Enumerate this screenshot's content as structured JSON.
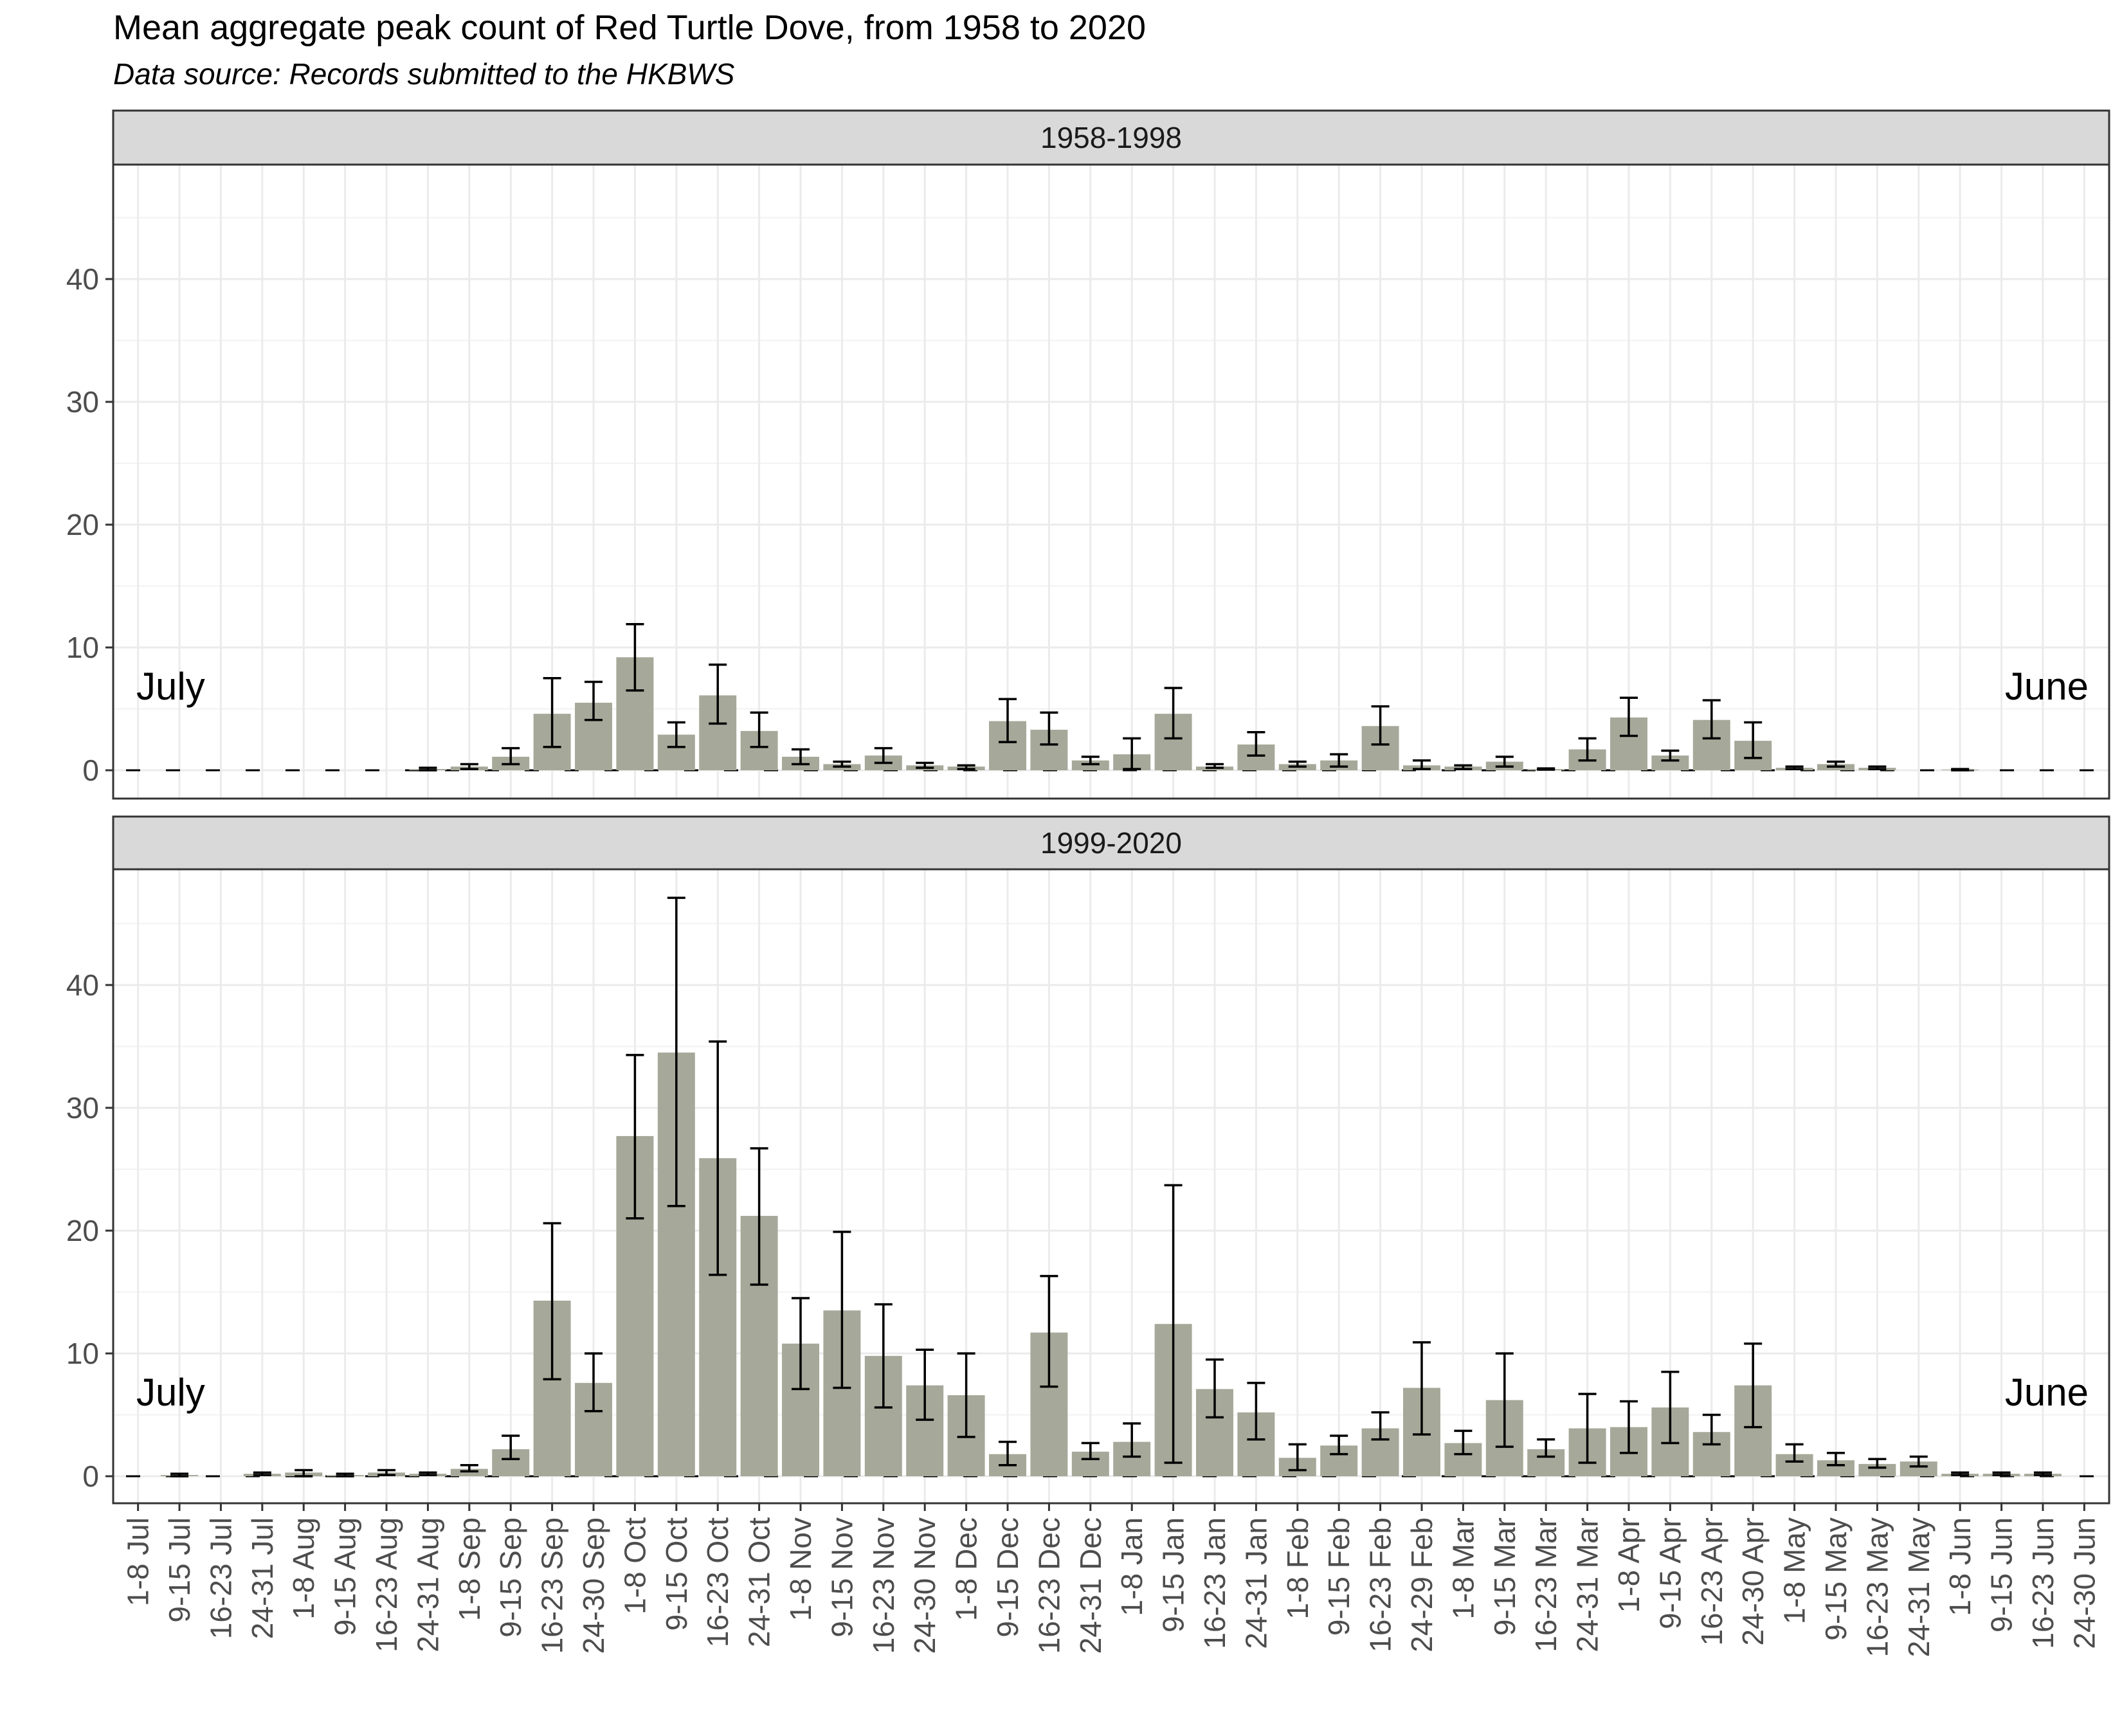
{
  "chart_data": {
    "type": "bar",
    "title": "Mean aggregate peak count of Red Turtle Dove, from 1958 to 2020",
    "subtitle": "Data source: Records submitted to the HKBWS",
    "xlabel": "",
    "ylabel": "",
    "ylim": [
      0,
      49
    ],
    "yticks": [
      0,
      10,
      20,
      30,
      40
    ],
    "grid": true,
    "bar_color": "#a6a899",
    "categories": [
      "1-8 Jul",
      "9-15 Jul",
      "16-23 Jul",
      "24-31 Jul",
      "1-8 Aug",
      "9-15 Aug",
      "16-23 Aug",
      "24-31 Aug",
      "1-8 Sep",
      "9-15 Sep",
      "16-23 Sep",
      "24-30 Sep",
      "1-8 Oct",
      "9-15 Oct",
      "16-23 Oct",
      "24-31 Oct",
      "1-8 Nov",
      "9-15 Nov",
      "16-23 Nov",
      "24-30 Nov",
      "1-8 Dec",
      "9-15 Dec",
      "16-23 Dec",
      "24-31 Dec",
      "1-8 Jan",
      "9-15 Jan",
      "16-23 Jan",
      "24-31 Jan",
      "1-8 Feb",
      "9-15 Feb",
      "16-23 Feb",
      "24-29 Feb",
      "1-8 Mar",
      "9-15 Mar",
      "16-23 Mar",
      "24-31 Mar",
      "1-8 Apr",
      "9-15 Apr",
      "16-23 Apr",
      "24-30 Apr",
      "1-8 May",
      "9-15 May",
      "16-23 May",
      "24-31 May",
      "1-8 Jun",
      "9-15 Jun",
      "16-23 Jun",
      "24-30 Jun"
    ],
    "panels": [
      {
        "label": "1958-1998",
        "start_label": "July",
        "end_label": "June",
        "values": [
          0,
          0,
          0,
          0,
          0,
          0,
          0,
          0.1,
          0.3,
          1.1,
          4.6,
          5.5,
          9.2,
          2.9,
          6.1,
          3.2,
          1.1,
          0.5,
          1.2,
          0.4,
          0.3,
          4.0,
          3.3,
          0.8,
          1.3,
          4.6,
          0.3,
          2.1,
          0.5,
          0.8,
          3.6,
          0.4,
          0.3,
          0.7,
          0.1,
          1.7,
          4.3,
          1.2,
          4.1,
          2.4,
          0.2,
          0.5,
          0.2,
          0,
          0.05,
          0,
          0,
          0
        ],
        "err_low": [
          0,
          0,
          0,
          0,
          0,
          0,
          0,
          0,
          0.1,
          0.5,
          1.9,
          4.1,
          6.5,
          1.9,
          3.8,
          1.9,
          0.5,
          0.3,
          0.6,
          0.2,
          0.1,
          2.3,
          2.1,
          0.5,
          0.1,
          2.6,
          0.2,
          1.2,
          0.3,
          0.3,
          2.1,
          0.1,
          0.1,
          0.3,
          0.05,
          0.8,
          2.8,
          0.8,
          2.6,
          1.0,
          0.1,
          0.3,
          0.1,
          0,
          0,
          0,
          0,
          0
        ],
        "err_high": [
          0,
          0,
          0,
          0,
          0,
          0,
          0,
          0.2,
          0.5,
          1.8,
          7.5,
          7.2,
          11.9,
          3.9,
          8.6,
          4.7,
          1.7,
          0.7,
          1.8,
          0.6,
          0.4,
          5.8,
          4.7,
          1.1,
          2.6,
          6.7,
          0.5,
          3.1,
          0.7,
          1.3,
          5.2,
          0.8,
          0.4,
          1.1,
          0.15,
          2.6,
          5.9,
          1.6,
          5.7,
          3.9,
          0.3,
          0.7,
          0.3,
          0,
          0.1,
          0,
          0,
          0
        ]
      },
      {
        "label": "1999-2020",
        "start_label": "July",
        "end_label": "June",
        "values": [
          0,
          0.1,
          0,
          0.2,
          0.3,
          0.1,
          0.3,
          0.2,
          0.6,
          2.2,
          14.3,
          7.6,
          27.7,
          34.5,
          25.9,
          21.2,
          10.8,
          13.5,
          9.8,
          7.4,
          6.6,
          1.8,
          11.7,
          2.0,
          2.8,
          12.4,
          7.1,
          5.2,
          1.5,
          2.5,
          3.9,
          7.2,
          2.7,
          6.2,
          2.2,
          3.9,
          4.0,
          5.6,
          3.6,
          7.4,
          1.8,
          1.3,
          1.0,
          1.2,
          0.2,
          0.2,
          0.2,
          0
        ],
        "err_low": [
          0,
          0,
          0,
          0.1,
          0,
          0,
          0.1,
          0.1,
          0.4,
          1.4,
          7.9,
          5.3,
          21.0,
          22.0,
          16.4,
          15.6,
          7.1,
          7.2,
          5.6,
          4.6,
          3.2,
          0.9,
          7.3,
          1.4,
          1.6,
          1.1,
          4.8,
          3.0,
          0.5,
          1.8,
          3.0,
          3.4,
          1.8,
          2.4,
          1.6,
          1.1,
          1.9,
          2.7,
          2.6,
          4.0,
          1.2,
          0.9,
          0.7,
          0.8,
          0.1,
          0.1,
          0.1,
          0
        ],
        "err_high": [
          0,
          0.2,
          0,
          0.3,
          0.5,
          0.2,
          0.5,
          0.3,
          0.9,
          3.3,
          20.6,
          10.0,
          34.3,
          47.1,
          35.4,
          26.7,
          14.5,
          19.9,
          14.0,
          10.3,
          10.0,
          2.8,
          16.3,
          2.7,
          4.3,
          23.7,
          9.5,
          7.6,
          2.6,
          3.3,
          5.2,
          10.9,
          3.7,
          10.0,
          3.0,
          6.7,
          6.1,
          8.5,
          5.0,
          10.8,
          2.6,
          1.9,
          1.4,
          1.6,
          0.3,
          0.3,
          0.3,
          0
        ]
      }
    ]
  }
}
